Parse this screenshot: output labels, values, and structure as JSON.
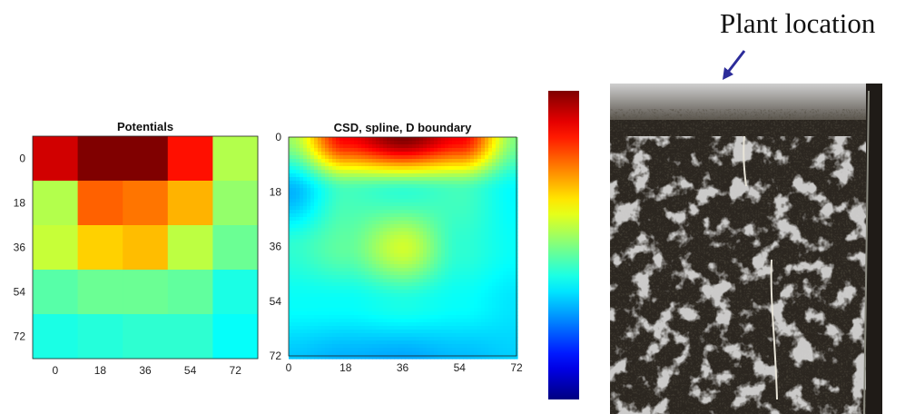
{
  "colors": {
    "background": "#ffffff",
    "arrow": "#2c2c9a",
    "soil_dark": "#2b2620",
    "soil_light": "#c9c9c9"
  },
  "photo": {
    "annotation": "Plant location",
    "arrow_icon": "arrow-down-left-icon"
  },
  "chart_data": [
    {
      "type": "heatmap",
      "title": "Potentials",
      "x_ticks": [
        "0",
        "18",
        "36",
        "54",
        "72"
      ],
      "y_ticks": [
        "0",
        "18",
        "36",
        "54",
        "72"
      ],
      "colormap": "jet",
      "values": [
        [
          0.92,
          1.0,
          1.0,
          0.86,
          0.55
        ],
        [
          0.55,
          0.78,
          0.76,
          0.7,
          0.52
        ],
        [
          0.57,
          0.67,
          0.69,
          0.56,
          0.48
        ],
        [
          0.46,
          0.48,
          0.48,
          0.47,
          0.4
        ],
        [
          0.4,
          0.41,
          0.42,
          0.42,
          0.38
        ]
      ]
    },
    {
      "type": "heatmap",
      "title": "CSD, spline, D boundary",
      "x_ticks": [
        "0",
        "18",
        "36",
        "54",
        "72"
      ],
      "y_ticks": [
        "0",
        "18",
        "36",
        "54",
        "72"
      ],
      "colormap": "jet",
      "interpolation": "spline",
      "values": [
        [
          0.53,
          0.88,
          1.0,
          0.88,
          0.5
        ],
        [
          0.3,
          0.44,
          0.42,
          0.44,
          0.37
        ],
        [
          0.42,
          0.47,
          0.58,
          0.42,
          0.38
        ],
        [
          0.38,
          0.38,
          0.4,
          0.38,
          0.35
        ],
        [
          0.32,
          0.3,
          0.29,
          0.31,
          0.33
        ]
      ]
    },
    {
      "type": "colorbar",
      "colormap": "jet",
      "orientation": "vertical",
      "high_at": "top"
    }
  ]
}
